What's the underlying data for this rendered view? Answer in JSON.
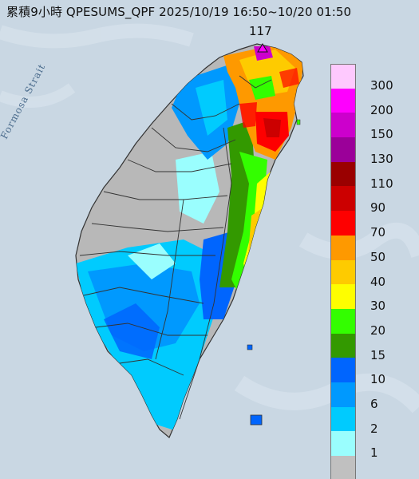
{
  "title": "累積9小時 QPESUMS_QPF 2025/10/19 16:50~10/20 01:50",
  "max_value": "117",
  "strait_label": "Formosa Strait",
  "colors": {
    "sea": "#c9d7e3",
    "land_gray": "#b8b8b8",
    "border": "#333333"
  },
  "legend": [
    {
      "label": "300",
      "color": "#fec9fe"
    },
    {
      "label": "200",
      "color": "#fe00fe"
    },
    {
      "label": "150",
      "color": "#cc00cc"
    },
    {
      "label": "130",
      "color": "#9b0099"
    },
    {
      "label": "110",
      "color": "#9a0000"
    },
    {
      "label": "90",
      "color": "#cc0000"
    },
    {
      "label": "70",
      "color": "#fe0000"
    },
    {
      "label": "50",
      "color": "#fe9900"
    },
    {
      "label": "40",
      "color": "#fecb00"
    },
    {
      "label": "30",
      "color": "#fefe00"
    },
    {
      "label": "20",
      "color": "#33fe00"
    },
    {
      "label": "15",
      "color": "#339900"
    },
    {
      "label": "10",
      "color": "#0065fe"
    },
    {
      "label": "6",
      "color": "#0099fe"
    },
    {
      "label": "2",
      "color": "#00cbfe"
    },
    {
      "label": "1",
      "color": "#9afefe"
    },
    {
      "label": "",
      "color": "#c0c0c0"
    }
  ]
}
